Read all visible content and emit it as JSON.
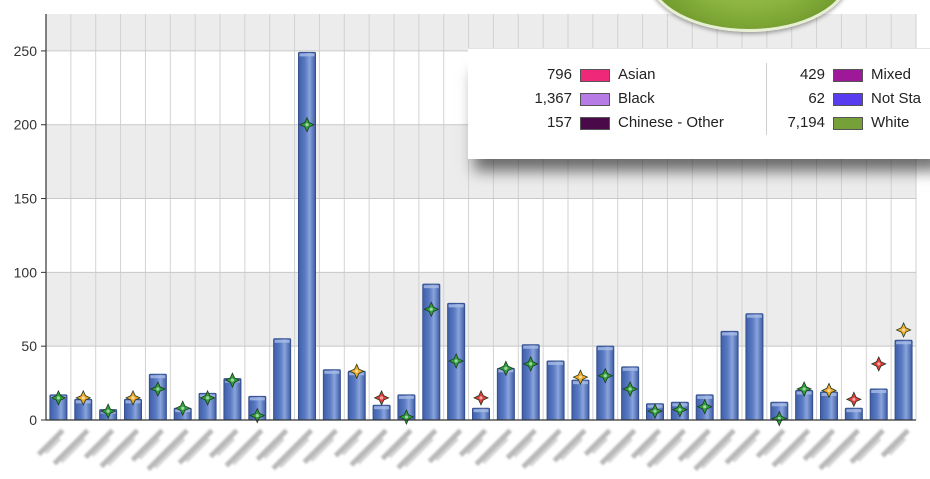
{
  "chart_data": {
    "type": "bar",
    "ylim": [
      0,
      275
    ],
    "yticks": [
      0,
      50,
      100,
      150,
      200,
      250
    ],
    "grid": true,
    "bar_color": "#5b7cc4",
    "values": [
      17,
      14,
      7,
      14,
      31,
      8,
      18,
      28,
      16,
      55,
      249,
      34,
      33,
      10,
      17,
      92,
      79,
      8,
      35,
      51,
      40,
      27,
      50,
      36,
      11,
      12,
      17,
      60,
      72,
      12,
      20,
      19,
      8,
      21,
      54
    ],
    "markers": [
      {
        "index": 0,
        "value": 15,
        "color": "#2e9e3a"
      },
      {
        "index": 1,
        "value": 15,
        "color": "#f0a92a"
      },
      {
        "index": 2,
        "value": 6,
        "color": "#2e9e3a"
      },
      {
        "index": 3,
        "value": 15,
        "color": "#f0a92a"
      },
      {
        "index": 4,
        "value": 21,
        "color": "#2e9e3a"
      },
      {
        "index": 5,
        "value": 8,
        "color": "#2e9e3a"
      },
      {
        "index": 6,
        "value": 15,
        "color": "#2e9e3a"
      },
      {
        "index": 7,
        "value": 27,
        "color": "#2e9e3a"
      },
      {
        "index": 8,
        "value": 3,
        "color": "#2e9e3a"
      },
      {
        "index": 10,
        "value": 200,
        "color": "#2e9e3a"
      },
      {
        "index": 12,
        "value": 33,
        "color": "#f0a92a"
      },
      {
        "index": 13,
        "value": 15,
        "color": "#e23b3b"
      },
      {
        "index": 14,
        "value": 2,
        "color": "#2e9e3a"
      },
      {
        "index": 15,
        "value": 75,
        "color": "#2e9e3a"
      },
      {
        "index": 16,
        "value": 40,
        "color": "#2e9e3a"
      },
      {
        "index": 17,
        "value": 15,
        "color": "#e23b3b"
      },
      {
        "index": 18,
        "value": 35,
        "color": "#2e9e3a"
      },
      {
        "index": 19,
        "value": 38,
        "color": "#2e9e3a"
      },
      {
        "index": 21,
        "value": 29,
        "color": "#f0a92a"
      },
      {
        "index": 22,
        "value": 30,
        "color": "#2e9e3a"
      },
      {
        "index": 23,
        "value": 21,
        "color": "#2e9e3a"
      },
      {
        "index": 24,
        "value": 6,
        "color": "#2e9e3a"
      },
      {
        "index": 25,
        "value": 7,
        "color": "#2e9e3a"
      },
      {
        "index": 26,
        "value": 9,
        "color": "#2e9e3a"
      },
      {
        "index": 29,
        "value": 1,
        "color": "#2e9e3a"
      },
      {
        "index": 30,
        "value": 21,
        "color": "#2e9e3a"
      },
      {
        "index": 31,
        "value": 20,
        "color": "#f0a92a"
      },
      {
        "index": 32,
        "value": 14,
        "color": "#e23b3b"
      },
      {
        "index": 33,
        "value": 38,
        "color": "#e23b3b"
      },
      {
        "index": 34,
        "value": 61,
        "color": "#f0a92a"
      }
    ]
  },
  "legend": {
    "left": [
      {
        "count": "796",
        "label": "Asian",
        "color": "#f0287a"
      },
      {
        "count": "1,367",
        "label": "Black",
        "color": "#b77be6"
      },
      {
        "count": "157",
        "label": "Chinese - Other",
        "color": "#4a0a4a"
      }
    ],
    "right": [
      {
        "count": "429",
        "label": "Mixed",
        "color": "#a0189a"
      },
      {
        "count": "62",
        "label": "Not Sta",
        "color": "#5a3cf0"
      },
      {
        "count": "7,194",
        "label": "White",
        "color": "#76a038"
      }
    ]
  }
}
